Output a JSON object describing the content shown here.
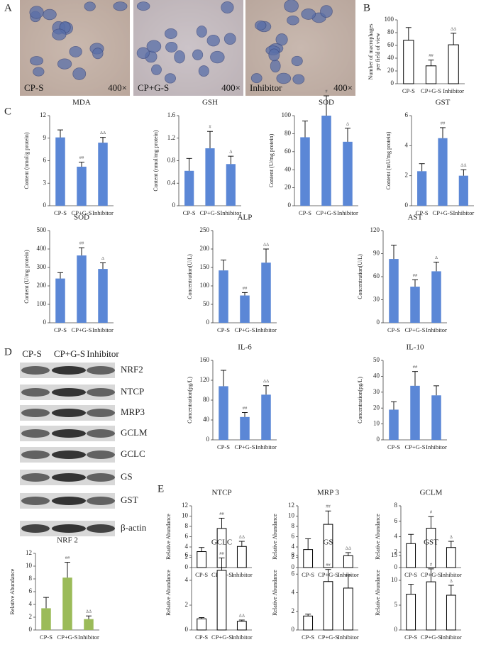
{
  "panel_labels": [
    "A",
    "B",
    "C",
    "D",
    "E"
  ],
  "micrographs": [
    {
      "label": "CP-S",
      "magnification": "400×"
    },
    {
      "label": "CP+G-S",
      "magnification": "400×"
    },
    {
      "label": "Inhibitor",
      "magnification": "400×"
    }
  ],
  "blot": {
    "columns": [
      "CP-S",
      "CP+G-S",
      "Inhibitor"
    ],
    "rows": [
      "NRF2",
      "NTCP",
      "MRP3",
      "GCLM",
      "GCLC",
      "GS",
      "GST",
      "β-actin"
    ]
  },
  "chart_data": [
    {
      "type": "bar",
      "ylabel": [
        "Number of macrophages",
        "per field of view"
      ],
      "categories": [
        "CP-S",
        "CP+G-S",
        "Inhibitor"
      ],
      "series": [
        {
          "color": "#ffffff",
          "values": [
            68,
            28,
            61
          ],
          "errors": [
            20,
            9,
            18
          ]
        }
      ],
      "significance": [
        null,
        "##",
        "ΔΔ"
      ],
      "ylim": [
        0,
        100
      ],
      "yticks": [
        0,
        20,
        40,
        60,
        80,
        100
      ]
    },
    {
      "type": "bar",
      "title": "MDA",
      "ylabel": [
        "Content (nmol/g protein)"
      ],
      "categories": [
        "CP-S",
        "CP+G-S",
        "Inhibitor"
      ],
      "series": [
        {
          "color": "#5b87d6",
          "values": [
            9.1,
            5.2,
            8.4
          ],
          "errors": [
            1.0,
            0.6,
            0.7
          ]
        }
      ],
      "significance": [
        null,
        "##",
        "ΔΔ"
      ],
      "ylim": [
        0,
        12
      ],
      "yticks": [
        0,
        3,
        6,
        9,
        12
      ]
    },
    {
      "type": "bar",
      "title": "GSH",
      "ylabel": [
        "Content (nmol/mg protein)"
      ],
      "categories": [
        "CP-S",
        "CP+G-S",
        "Inhibitor"
      ],
      "series": [
        {
          "color": "#5b87d6",
          "values": [
            0.62,
            1.02,
            0.74
          ],
          "errors": [
            0.22,
            0.3,
            0.14
          ]
        }
      ],
      "significance": [
        null,
        "#",
        "Δ"
      ],
      "ylim": [
        0,
        1.6
      ],
      "yticks": [
        0,
        0.4,
        0.8,
        1.2,
        1.6
      ]
    },
    {
      "type": "bar",
      "title": "SOD",
      "ylabel": [
        "Content (U/mg protein)"
      ],
      "categories": [
        "CP-S",
        "CP+G-S",
        "Inhibitor"
      ],
      "series": [
        {
          "color": "#5b87d6",
          "values": [
            76,
            100,
            71
          ],
          "errors": [
            18,
            22,
            15
          ]
        }
      ],
      "significance": [
        null,
        "#",
        "Δ"
      ],
      "ylim": [
        0,
        100
      ],
      "yticks": [
        0,
        20,
        40,
        60,
        80,
        100
      ]
    },
    {
      "type": "bar",
      "title": "GST",
      "ylabel": [
        "Content (mU/mg protein)"
      ],
      "categories": [
        "CP-S",
        "CP+G-S",
        "Inhibitor"
      ],
      "series": [
        {
          "color": "#5b87d6",
          "values": [
            2.3,
            4.5,
            2.0
          ],
          "errors": [
            0.5,
            0.7,
            0.4
          ]
        }
      ],
      "significance": [
        null,
        "##",
        "ΔΔ"
      ],
      "ylim": [
        0,
        6
      ],
      "yticks": [
        0,
        2,
        4,
        6
      ]
    },
    {
      "type": "bar",
      "title": "SOD",
      "ylabel": [
        "Content (U/mg protein)"
      ],
      "categories": [
        "CP-S",
        "CP+G-S",
        "Inhibitor"
      ],
      "series": [
        {
          "color": "#5b87d6",
          "values": [
            240,
            365,
            292
          ],
          "errors": [
            32,
            42,
            33
          ]
        }
      ],
      "significance": [
        null,
        "##",
        "Δ"
      ],
      "ylim": [
        0,
        500
      ],
      "yticks": [
        0,
        100,
        200,
        300,
        400,
        500
      ]
    },
    {
      "type": "bar",
      "title": "ALP",
      "ylabel": [
        "Concentration(U/L)"
      ],
      "categories": [
        "CP-S",
        "CP+G-S",
        "Inhibitor"
      ],
      "series": [
        {
          "color": "#5b87d6",
          "values": [
            142,
            74,
            163
          ],
          "errors": [
            28,
            8,
            37
          ]
        }
      ],
      "significance": [
        null,
        "##",
        "ΔΔ"
      ],
      "ylim": [
        0,
        250
      ],
      "yticks": [
        0,
        50,
        100,
        150,
        200,
        250
      ]
    },
    {
      "type": "bar",
      "title": "AST",
      "ylabel": [
        "Concentration(U/L)"
      ],
      "categories": [
        "CP-S",
        "CP+G-S",
        "Inhibitor"
      ],
      "series": [
        {
          "color": "#5b87d6",
          "values": [
            83,
            47,
            67
          ],
          "errors": [
            18,
            9,
            12
          ]
        }
      ],
      "significance": [
        null,
        "##",
        "Δ"
      ],
      "ylim": [
        0,
        120
      ],
      "yticks": [
        0,
        30,
        60,
        90,
        120
      ]
    },
    {
      "type": "bar",
      "title": "IL-6",
      "ylabel": [
        "Concentration(pg/L)"
      ],
      "categories": [
        "CP-S",
        "CP+G-S",
        "Inhibitor"
      ],
      "series": [
        {
          "color": "#5b87d6",
          "values": [
            108,
            46,
            91
          ],
          "errors": [
            32,
            9,
            18
          ]
        }
      ],
      "significance": [
        null,
        "##",
        "ΔΔ"
      ],
      "ylim": [
        0,
        160
      ],
      "yticks": [
        0,
        40,
        80,
        120,
        160
      ]
    },
    {
      "type": "bar",
      "title": "IL-10",
      "ylabel": [
        "Concentration(pg/L)"
      ],
      "categories": [
        "CP-S",
        "CP+G-S",
        "Inhibitor"
      ],
      "series": [
        {
          "color": "#5b87d6",
          "values": [
            19,
            34,
            28
          ],
          "errors": [
            5,
            9,
            6
          ]
        }
      ],
      "significance": [
        null,
        "##",
        null
      ],
      "ylim": [
        0,
        50
      ],
      "yticks": [
        0,
        10,
        20,
        30,
        40,
        50
      ]
    },
    {
      "type": "bar",
      "title": "NTCP",
      "ylabel": [
        "Relative Abundance"
      ],
      "categories": [
        "CP-S",
        "CP+G-S",
        "Inhibitor"
      ],
      "series": [
        {
          "color": "#ffffff",
          "values": [
            3.1,
            7.6,
            4.1
          ],
          "errors": [
            0.8,
            2.0,
            1.0
          ]
        }
      ],
      "significance": [
        null,
        "##",
        "ΔΔ"
      ],
      "ylim": [
        0,
        12
      ],
      "yticks": [
        0,
        2,
        4,
        6,
        8,
        10,
        12
      ]
    },
    {
      "type": "bar",
      "title": "MRP 3",
      "ylabel": [
        "Relative Abundance"
      ],
      "categories": [
        "CP-S",
        "CP+G-S",
        "Inhibitor"
      ],
      "series": [
        {
          "color": "#ffffff",
          "values": [
            3.5,
            8.4,
            2.3
          ],
          "errors": [
            2.1,
            2.6,
            0.6
          ]
        }
      ],
      "significance": [
        null,
        "##",
        "ΔΔ"
      ],
      "ylim": [
        0,
        12
      ],
      "yticks": [
        0,
        2,
        4,
        6,
        8,
        10,
        12
      ]
    },
    {
      "type": "bar",
      "title": "GCLM",
      "ylabel": [
        "Relative Abundance"
      ],
      "categories": [
        "CP-S",
        "CP+G-S",
        "Inhibitor"
      ],
      "series": [
        {
          "color": "#ffffff",
          "values": [
            3.1,
            5.1,
            2.6
          ],
          "errors": [
            1.2,
            1.5,
            0.8
          ]
        }
      ],
      "significance": [
        null,
        "#",
        "Δ"
      ],
      "ylim": [
        0,
        8
      ],
      "yticks": [
        0,
        2,
        4,
        6,
        8
      ]
    },
    {
      "type": "bar",
      "title": "NRF 2",
      "ylabel": [
        "Relative Abundance"
      ],
      "categories": [
        "CP-S",
        "CP+G-S",
        "Inhibitor"
      ],
      "series": [
        {
          "color": "#9bbb59",
          "values": [
            3.4,
            8.2,
            1.7
          ],
          "errors": [
            1.7,
            2.4,
            0.5
          ]
        }
      ],
      "significance": [
        null,
        "##",
        "ΔΔ"
      ],
      "ylim": [
        0,
        12
      ],
      "yticks": [
        0,
        2,
        4,
        6,
        8,
        10,
        12
      ]
    },
    {
      "type": "bar",
      "title": "GCLC",
      "ylabel": [
        "Relative Abundance"
      ],
      "categories": [
        "CP-S",
        "CP+G-S",
        "Inhibitor"
      ],
      "series": [
        {
          "color": "#ffffff",
          "values": [
            0.9,
            4.8,
            0.7
          ],
          "errors": [
            0.1,
            1.0,
            0.1
          ]
        }
      ],
      "significance": [
        null,
        "##",
        "ΔΔ"
      ],
      "ylim": [
        0,
        6
      ],
      "yticks": [
        0,
        2,
        4,
        6
      ]
    },
    {
      "type": "bar",
      "title": "GS",
      "ylabel": [
        "Relative Abundance"
      ],
      "categories": [
        "CP-S",
        "CP+G-S",
        "Inhibitor"
      ],
      "series": [
        {
          "color": "#ffffff",
          "values": [
            1.5,
            5.2,
            4.5
          ],
          "errors": [
            0.2,
            1.3,
            1.4
          ]
        }
      ],
      "significance": [
        null,
        "##",
        null
      ],
      "ylim": [
        0,
        8
      ],
      "yticks": [
        0,
        2,
        4,
        6,
        8
      ]
    },
    {
      "type": "bar",
      "title": "GST",
      "ylabel": [
        "Relative Abundance"
      ],
      "categories": [
        "CP-S",
        "CP+G-S",
        "Inhibitor"
      ],
      "series": [
        {
          "color": "#ffffff",
          "values": [
            7.2,
            9.7,
            7.0
          ],
          "errors": [
            2.0,
            2.6,
            2.0
          ]
        }
      ],
      "significance": [
        null,
        "#",
        "Δ"
      ],
      "ylim": [
        0,
        15
      ],
      "yticks": [
        0,
        5,
        10,
        15
      ]
    }
  ]
}
